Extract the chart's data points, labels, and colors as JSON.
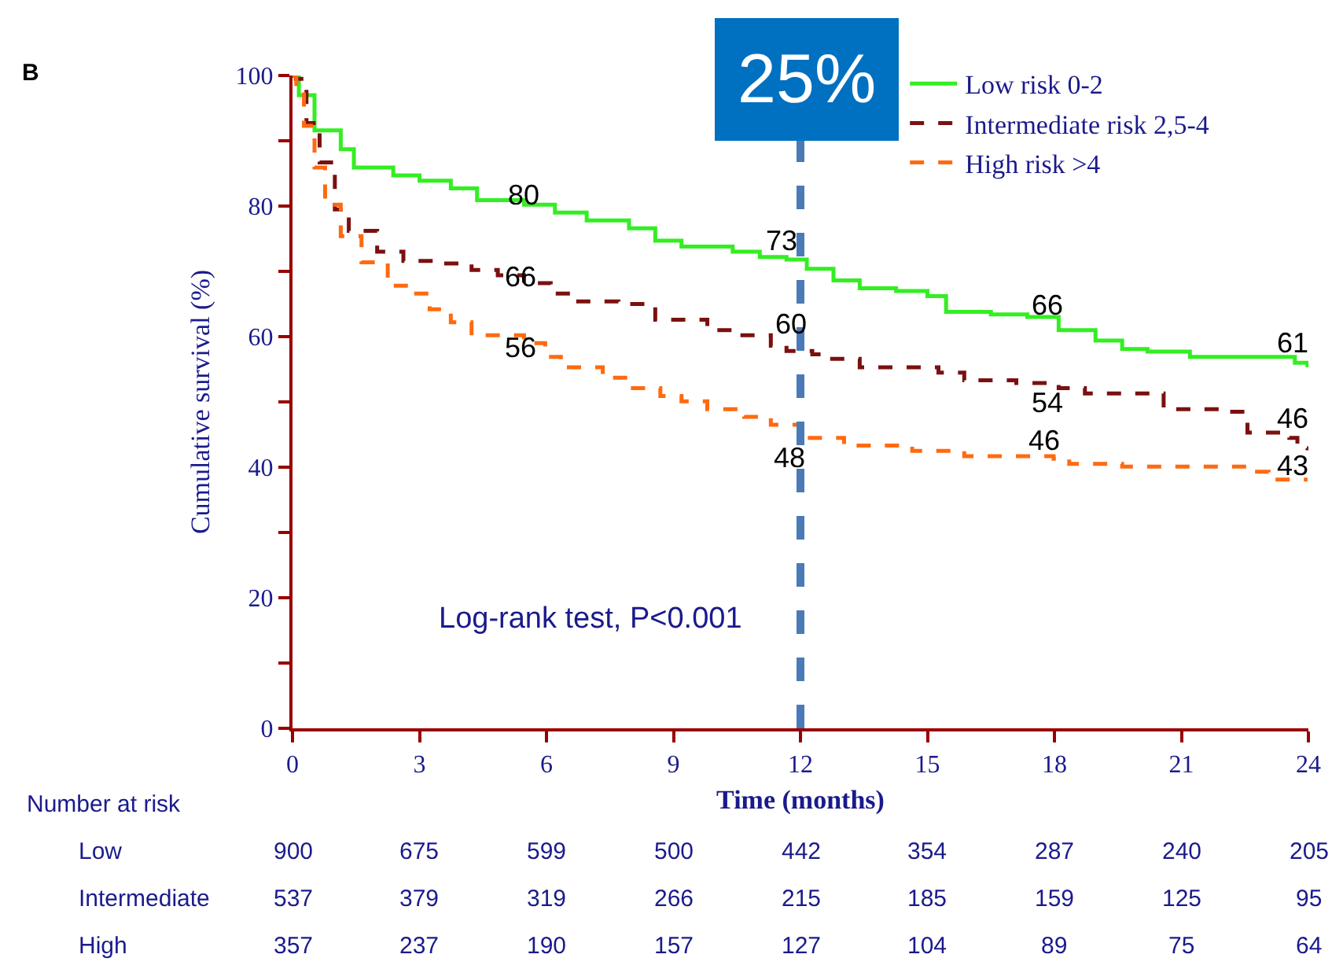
{
  "chart_data": {
    "type": "step",
    "xlabel": "Time (months)",
    "ylabel": "Cumulative survival (%)",
    "xlim": [
      0,
      24
    ],
    "xticks": [
      0,
      3,
      6,
      9,
      12,
      15,
      18,
      21,
      24
    ],
    "ylim": [
      0,
      100
    ],
    "yticks": [
      0,
      {
        "value": 10,
        "label": null
      },
      20,
      {
        "value": 30,
        "label": null
      },
      40,
      {
        "value": 50,
        "label": null
      },
      60,
      {
        "value": 70,
        "label": null
      },
      80,
      {
        "value": 90,
        "label": null
      },
      100
    ],
    "legend": "top right",
    "marker": "none",
    "series": [
      {
        "name": "Low risk 0-2",
        "color": "#33ee22",
        "line_style": "solid",
        "x": [
          0,
          0.15,
          0.52,
          1.14,
          1.45,
          2.38,
          3.0,
          3.74,
          4.36,
          5.47,
          6.2,
          6.95,
          7.95,
          8.57,
          9.19,
          10.4,
          11.04,
          11.67,
          12.15,
          12.78,
          13.4,
          14.26,
          15.0,
          15.44,
          16.5,
          17.36,
          18.1,
          18.97,
          19.6,
          20.2,
          21.2,
          23.55,
          23.68,
          23.98
        ],
        "values": [
          100,
          97,
          91.6,
          88.7,
          85.9,
          84.7,
          83.9,
          82.7,
          80.9,
          80.2,
          79,
          77.8,
          76.6,
          74.7,
          73.8,
          73,
          72.2,
          71.8,
          70.4,
          68.6,
          67.4,
          67,
          66.2,
          63.8,
          63.4,
          63,
          61,
          59.4,
          58.1,
          57.7,
          56.9,
          56.9,
          56,
          55.3
        ]
      },
      {
        "name": "Intermediate risk 2,5-4",
        "color": "#7b1010",
        "line_style": "dashed",
        "x": [
          0,
          0.08,
          0.33,
          0.64,
          1.0,
          1.33,
          2.0,
          2.62,
          3.5,
          4.23,
          4.85,
          5.47,
          6.1,
          6.7,
          7.7,
          8.32,
          8.57,
          9.8,
          10.4,
          11.3,
          11.67,
          12.28,
          12.53,
          13.4,
          15.26,
          15.87,
          17.1,
          18.1,
          18.72,
          20.1,
          20.58,
          21.94,
          22.56,
          23.55,
          23.74,
          23.98
        ],
        "values": [
          100,
          99.5,
          92.7,
          86.7,
          79.5,
          76.2,
          73,
          71.6,
          71.2,
          70.2,
          69.4,
          68.2,
          66.6,
          65.4,
          65,
          64.2,
          62.6,
          61,
          60.2,
          58.6,
          57.8,
          57.3,
          56.6,
          55.3,
          54.5,
          53.3,
          52.9,
          52.1,
          51.3,
          51.3,
          48.9,
          48.5,
          45.3,
          44.5,
          42.9,
          42.6
        ]
      },
      {
        "name": "High risk >4",
        "color": "#ff6a10",
        "line_style": "dashed",
        "x": [
          0,
          0.09,
          0.27,
          0.52,
          0.77,
          1.14,
          1.63,
          2.25,
          2.87,
          3.24,
          3.74,
          4.23,
          5.47,
          5.97,
          6.34,
          7.33,
          7.95,
          8.69,
          9.19,
          9.8,
          10.67,
          11.3,
          12.04,
          12.16,
          13.03,
          14.64,
          15.87,
          17.98,
          18.35,
          19.6,
          22.68,
          23.06,
          23.98
        ],
        "values": [
          100,
          98.7,
          92.3,
          85.9,
          80.2,
          75.4,
          71.4,
          67.8,
          66.6,
          64.2,
          62.2,
          60.2,
          59,
          56.9,
          55.3,
          53.7,
          52.1,
          50.9,
          50.1,
          48.9,
          47.7,
          46.5,
          44.9,
          44.5,
          43.3,
          42.5,
          41.7,
          41.3,
          40.5,
          40.1,
          39.3,
          38.1,
          38.1
        ]
      }
    ],
    "ref_lines": [
      {
        "axis": "x",
        "value": 12,
        "color": "#4a7ab8",
        "line_style": "dashed"
      }
    ],
    "annotations": [
      "80",
      "73",
      "66",
      "61",
      "66",
      "60",
      "54",
      "46",
      "56",
      "48",
      "46",
      "43",
      "25%",
      "B",
      "Log-rank test, P<0.001",
      "Number at risk",
      "Low",
      "900",
      "675",
      "599",
      "500",
      "442",
      "354",
      "287",
      "240",
      "205",
      "Intermediate",
      "537",
      "379",
      "319",
      "266",
      "215",
      "185",
      "159",
      "125",
      "95",
      "High",
      "357",
      "237",
      "190",
      "157",
      "127",
      "104",
      "89",
      "75",
      "64"
    ]
  }
}
